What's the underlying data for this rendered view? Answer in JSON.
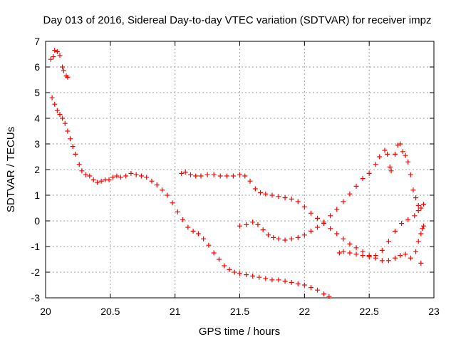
{
  "chart_data": {
    "type": "scatter",
    "title": "Day 013 of 2016, Sidereal Day-to-day VTEC variation (SDTVAR) for receiver impz",
    "xlabel": "GPS time / hours",
    "ylabel": "SDTVAR / TECUs",
    "xlim": [
      20,
      23
    ],
    "ylim": [
      -3,
      7
    ],
    "xticks": [
      "20",
      "20.5",
      "21",
      "21.5",
      "22",
      "22.5",
      "23"
    ],
    "yticks": [
      "-3",
      "-2",
      "-1",
      "0",
      "1",
      "2",
      "3",
      "4",
      "5",
      "6",
      "7"
    ],
    "grid": true,
    "marker": "plus",
    "colors": {
      "points": "#ff0000",
      "axis": "#000000",
      "grid": "#a0a0a0"
    },
    "series": [
      {
        "points": [
          [
            20.04,
            6.3
          ],
          [
            20.06,
            6.4
          ],
          [
            20.07,
            6.65
          ],
          [
            20.09,
            6.6
          ],
          [
            20.11,
            6.45
          ],
          [
            20.13,
            6.0
          ],
          [
            20.14,
            5.85
          ],
          [
            20.16,
            5.65
          ],
          [
            20.17,
            5.6
          ],
          [
            20.05,
            4.8
          ],
          [
            20.07,
            4.55
          ],
          [
            20.09,
            4.3
          ],
          [
            20.11,
            4.15
          ],
          [
            20.13,
            4.0
          ],
          [
            20.15,
            3.8
          ],
          [
            20.17,
            3.5
          ],
          [
            20.19,
            3.2
          ],
          [
            20.21,
            2.9
          ],
          [
            20.23,
            2.6
          ],
          [
            20.26,
            2.2
          ],
          [
            20.28,
            1.95
          ],
          [
            20.31,
            1.8
          ],
          [
            20.34,
            1.75
          ],
          [
            20.37,
            1.6
          ],
          [
            20.4,
            1.5
          ],
          [
            20.43,
            1.55
          ],
          [
            20.46,
            1.6
          ],
          [
            20.49,
            1.6
          ],
          [
            20.52,
            1.7
          ],
          [
            20.55,
            1.75
          ],
          [
            20.58,
            1.7
          ],
          [
            20.62,
            1.75
          ],
          [
            20.66,
            1.85
          ],
          [
            20.7,
            1.8
          ],
          [
            20.74,
            1.75
          ],
          [
            20.78,
            1.7
          ],
          [
            20.82,
            1.55
          ],
          [
            20.86,
            1.4
          ],
          [
            20.9,
            1.2
          ],
          [
            20.94,
            1.0
          ],
          [
            20.98,
            0.7
          ],
          [
            21.02,
            0.35
          ],
          [
            21.06,
            0.05
          ],
          [
            21.1,
            -0.25
          ],
          [
            21.14,
            -0.4
          ],
          [
            21.18,
            -0.5
          ],
          [
            21.22,
            -0.7
          ],
          [
            21.26,
            -0.95
          ],
          [
            21.3,
            -1.25
          ],
          [
            21.34,
            -1.5
          ],
          [
            21.38,
            -1.75
          ],
          [
            21.42,
            -1.9
          ],
          [
            21.46,
            -2.0
          ],
          [
            21.5,
            -2.05
          ],
          [
            21.55,
            -2.1
          ],
          [
            21.6,
            -2.15
          ],
          [
            21.65,
            -2.2
          ],
          [
            21.7,
            -2.25
          ],
          [
            21.75,
            -2.3
          ],
          [
            21.8,
            -2.3
          ],
          [
            21.85,
            -2.35
          ],
          [
            21.9,
            -2.4
          ],
          [
            21.95,
            -2.45
          ],
          [
            22.0,
            -2.5
          ],
          [
            22.05,
            -2.6
          ],
          [
            22.1,
            -2.7
          ],
          [
            22.15,
            -2.85
          ],
          [
            22.19,
            -2.95
          ]
        ]
      },
      {
        "points": [
          [
            21.05,
            1.85
          ],
          [
            21.08,
            1.9
          ],
          [
            21.12,
            1.8
          ],
          [
            21.16,
            1.75
          ],
          [
            21.2,
            1.75
          ],
          [
            21.25,
            1.8
          ],
          [
            21.3,
            1.8
          ],
          [
            21.35,
            1.75
          ],
          [
            21.4,
            1.75
          ],
          [
            21.45,
            1.75
          ],
          [
            21.5,
            1.8
          ],
          [
            21.54,
            1.75
          ],
          [
            21.58,
            1.55
          ],
          [
            21.62,
            1.25
          ],
          [
            21.66,
            1.1
          ],
          [
            21.7,
            1.05
          ],
          [
            21.75,
            1.0
          ],
          [
            21.8,
            0.95
          ],
          [
            21.85,
            0.9
          ],
          [
            21.9,
            0.85
          ],
          [
            21.95,
            0.75
          ],
          [
            22.0,
            0.55
          ],
          [
            22.05,
            0.3
          ],
          [
            22.1,
            0.1
          ],
          [
            22.15,
            -0.1
          ],
          [
            22.2,
            -0.3
          ],
          [
            22.25,
            -0.5
          ],
          [
            22.3,
            -0.7
          ],
          [
            22.35,
            -0.9
          ],
          [
            22.4,
            -1.05
          ],
          [
            22.45,
            -1.2
          ],
          [
            22.5,
            -1.35
          ],
          [
            22.55,
            -1.45
          ],
          [
            22.6,
            -1.55
          ],
          [
            22.65,
            -1.55
          ],
          [
            22.7,
            -1.45
          ],
          [
            22.74,
            -1.35
          ],
          [
            22.78,
            -1.3
          ],
          [
            22.82,
            -1.45
          ],
          [
            22.86,
            -1.2
          ],
          [
            22.88,
            -0.8
          ],
          [
            22.9,
            -0.5
          ],
          [
            22.91,
            -0.3
          ],
          [
            22.92,
            -0.2
          ],
          [
            22.9,
            -1.65
          ]
        ]
      },
      {
        "points": [
          [
            21.5,
            -0.2
          ],
          [
            21.55,
            -0.15
          ],
          [
            21.6,
            -0.05
          ],
          [
            21.64,
            -0.15
          ],
          [
            21.68,
            -0.35
          ],
          [
            21.72,
            -0.55
          ],
          [
            21.76,
            -0.65
          ],
          [
            21.8,
            -0.7
          ],
          [
            21.85,
            -0.75
          ],
          [
            21.9,
            -0.7
          ],
          [
            21.95,
            -0.65
          ],
          [
            22.0,
            -0.55
          ],
          [
            22.05,
            -0.4
          ],
          [
            22.1,
            -0.25
          ],
          [
            22.15,
            -0.05
          ],
          [
            22.2,
            0.2
          ],
          [
            22.25,
            0.45
          ],
          [
            22.3,
            0.75
          ],
          [
            22.35,
            1.05
          ],
          [
            22.4,
            1.35
          ],
          [
            22.45,
            1.65
          ],
          [
            22.5,
            1.85
          ],
          [
            22.55,
            2.2
          ],
          [
            22.58,
            2.5
          ],
          [
            22.62,
            2.75
          ],
          [
            22.64,
            2.6
          ],
          [
            22.66,
            2.1
          ],
          [
            22.67,
            1.95
          ],
          [
            22.7,
            2.6
          ],
          [
            22.72,
            2.95
          ],
          [
            22.74,
            3.0
          ],
          [
            22.76,
            2.7
          ],
          [
            22.78,
            2.55
          ],
          [
            22.8,
            2.3
          ],
          [
            22.82,
            1.8
          ],
          [
            22.84,
            1.2
          ],
          [
            22.86,
            0.9
          ],
          [
            22.88,
            0.6
          ],
          [
            22.9,
            0.5
          ],
          [
            22.92,
            0.65
          ]
        ]
      },
      {
        "points": [
          [
            22.27,
            -1.25
          ],
          [
            22.3,
            -1.2
          ],
          [
            22.35,
            -1.25
          ],
          [
            22.4,
            -1.3
          ],
          [
            22.45,
            -1.35
          ],
          [
            22.5,
            -1.4
          ],
          [
            22.55,
            -1.35
          ],
          [
            22.6,
            -1.15
          ],
          [
            22.65,
            -0.8
          ],
          [
            22.7,
            -0.4
          ],
          [
            22.75,
            -0.1
          ],
          [
            22.8,
            0.05
          ],
          [
            22.85,
            0.2
          ],
          [
            22.88,
            0.4
          ]
        ]
      }
    ]
  }
}
